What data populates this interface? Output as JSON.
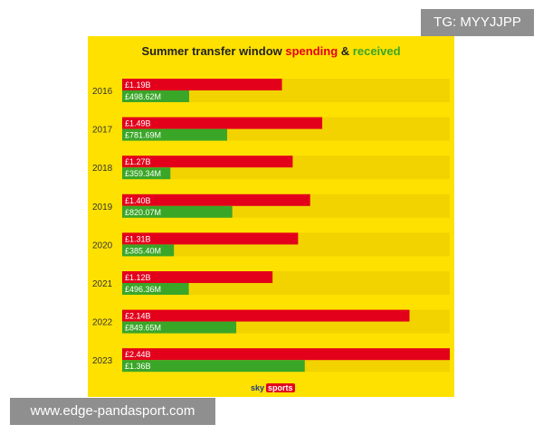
{
  "chart_data": {
    "type": "bar",
    "title_parts": [
      "Summer transfer window",
      "spending",
      "&",
      "received"
    ],
    "categories": [
      "2016",
      "2017",
      "2018",
      "2019",
      "2020",
      "2021",
      "2022",
      "2023"
    ],
    "series": [
      {
        "name": "spending",
        "color": "#e3001b",
        "values_gbp_m": [
          1190,
          1490,
          1270,
          1400,
          1310,
          1120,
          2140,
          2440
        ],
        "labels": [
          "£1.19B",
          "£1.49B",
          "£1.27B",
          "£1.40B",
          "£1.31B",
          "£1.12B",
          "£2.14B",
          "£2.44B"
        ]
      },
      {
        "name": "received",
        "color": "#3aa628",
        "values_gbp_m": [
          498.62,
          781.69,
          359.34,
          820.07,
          385.4,
          496.36,
          849.65,
          1360
        ],
        "labels": [
          "£498.62M",
          "£781.69M",
          "£359.34M",
          "£820.07M",
          "£385.40M",
          "£496.36M",
          "£849.65M",
          "£1.36B"
        ]
      }
    ],
    "xlim_gbp_m": [
      0,
      2440
    ],
    "track_color": "#f2d300",
    "background_color": "#ffe100"
  },
  "branding": {
    "sky": "sky",
    "sports": "sports"
  },
  "overlays": {
    "tg": "TG: MYYJJPP",
    "watermark": "www.edge-pandasport.com"
  }
}
